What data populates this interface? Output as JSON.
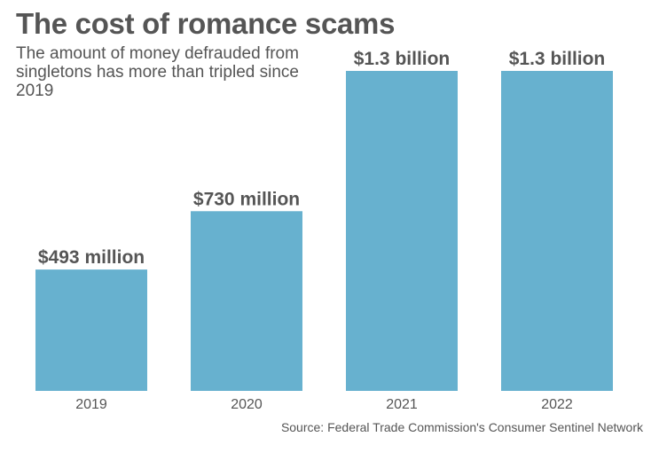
{
  "title": "The cost of romance scams",
  "subtitle": "The amount of money defrauded from singletons has more than tripled since 2019",
  "source": "Source: Federal Trade Commission's Consumer Sentinel Network",
  "chart_data": {
    "type": "bar",
    "title": "The cost of romance scams",
    "subtitle": "The amount of money defrauded from singletons has more than tripled since 2019",
    "categories": [
      "2019",
      "2020",
      "2021",
      "2022"
    ],
    "values": [
      493,
      730,
      1300,
      1300
    ],
    "units": "millions USD",
    "data_labels": [
      "$493 million",
      "$730 million",
      "$1.3 billion",
      "$1.3 billion"
    ],
    "xlabel": "",
    "ylabel": "",
    "ylim": [
      0,
      1300
    ],
    "grid": false,
    "legend": "none",
    "bar_color": "#67b1cf"
  }
}
